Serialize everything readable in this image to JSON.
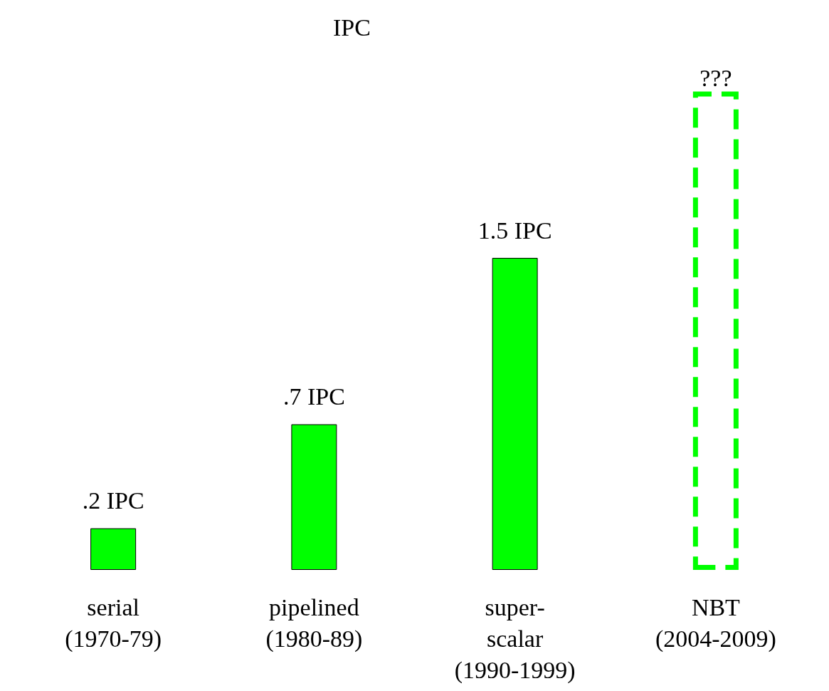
{
  "chart_data": {
    "type": "bar",
    "title": "IPC",
    "categories": [
      "serial\n(1970-79)",
      "pipelined\n(1980-89)",
      "super-\nscalar\n(1990-1999)",
      "NBT\n(2004-2009)"
    ],
    "series": [
      {
        "color": "#00ff00",
        "values": [
          0.2,
          0.7,
          1.5,
          null
        ],
        "value_labels": [
          ".2 IPC",
          ".7 IPC",
          "1.5 IPC",
          null
        ]
      },
      {
        "color": "#00ff00",
        "line_style": "dashed",
        "values": [
          null,
          null,
          null,
          2.3
        ],
        "value_labels": [
          null,
          null,
          null,
          "???"
        ]
      }
    ]
  }
}
